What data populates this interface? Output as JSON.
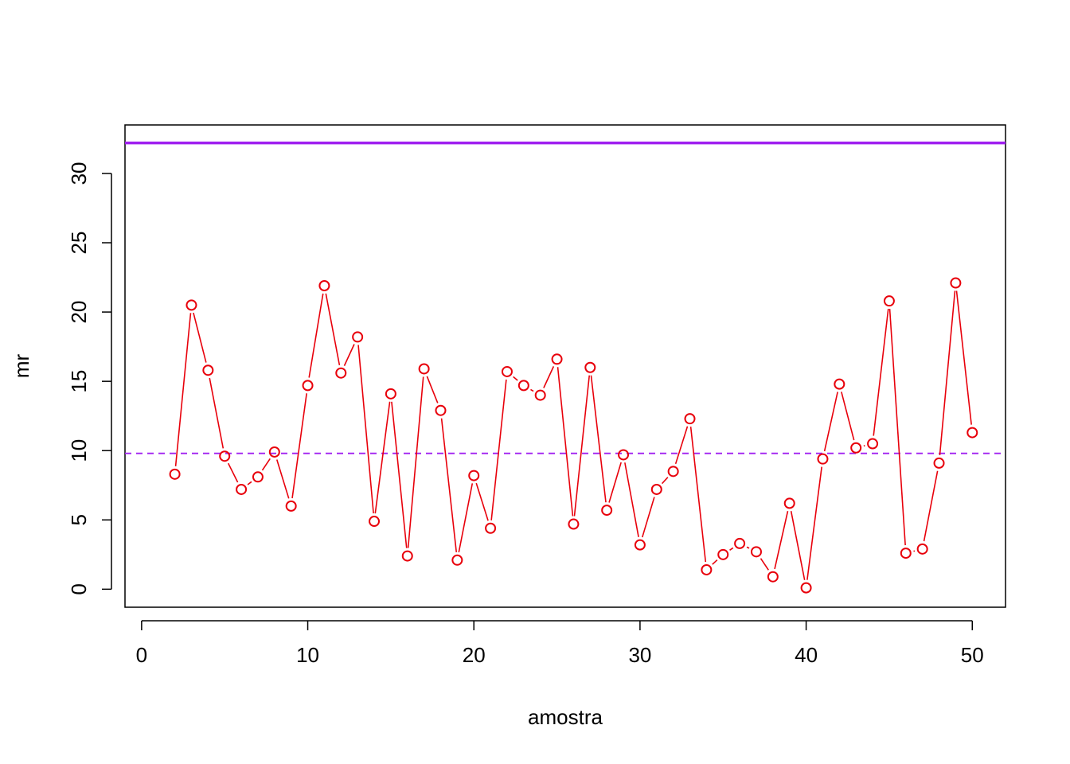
{
  "chart_data": {
    "type": "line",
    "title": "",
    "xlabel": "amostra",
    "ylabel": "mr",
    "xlim": [
      -1,
      52
    ],
    "ylim": [
      -1.3,
      33.5
    ],
    "xticks": [
      0,
      10,
      20,
      30,
      40,
      50
    ],
    "yticks": [
      0,
      5,
      10,
      15,
      20,
      25,
      30
    ],
    "grid": false,
    "legend": "none",
    "series": [
      {
        "x": [
          2,
          3,
          4,
          5,
          6,
          7,
          8,
          9,
          10,
          11,
          12,
          13,
          14,
          15,
          16,
          17,
          18,
          19,
          20,
          21,
          22,
          23,
          24,
          25,
          26,
          27,
          28,
          29,
          30,
          31,
          32,
          33,
          34,
          35,
          36,
          37,
          38,
          39,
          40,
          41,
          42,
          43,
          44,
          45,
          46,
          47,
          48,
          49,
          50
        ],
        "values": [
          8.3,
          20.5,
          15.8,
          9.6,
          7.2,
          8.1,
          9.9,
          6.0,
          14.7,
          21.9,
          15.6,
          18.2,
          4.9,
          14.1,
          2.4,
          15.9,
          12.9,
          2.1,
          8.2,
          4.4,
          15.7,
          14.7,
          14.0,
          16.6,
          4.7,
          16.0,
          5.7,
          9.7,
          3.2,
          7.2,
          8.5,
          12.3,
          1.4,
          2.5,
          3.3,
          2.7,
          0.9,
          6.2,
          0.1,
          9.4,
          14.8,
          10.2,
          10.5,
          20.8,
          2.6,
          2.9,
          9.1,
          22.1,
          11.3
        ],
        "color": "#e8000b",
        "marker": "open-circle",
        "line_style": "solid, gaps around points"
      }
    ],
    "reference_lines": [
      {
        "y": 32.2,
        "color": "#a020f0",
        "style": "solid"
      },
      {
        "y": 9.8,
        "color": "#a020f0",
        "style": "dashed"
      }
    ]
  }
}
